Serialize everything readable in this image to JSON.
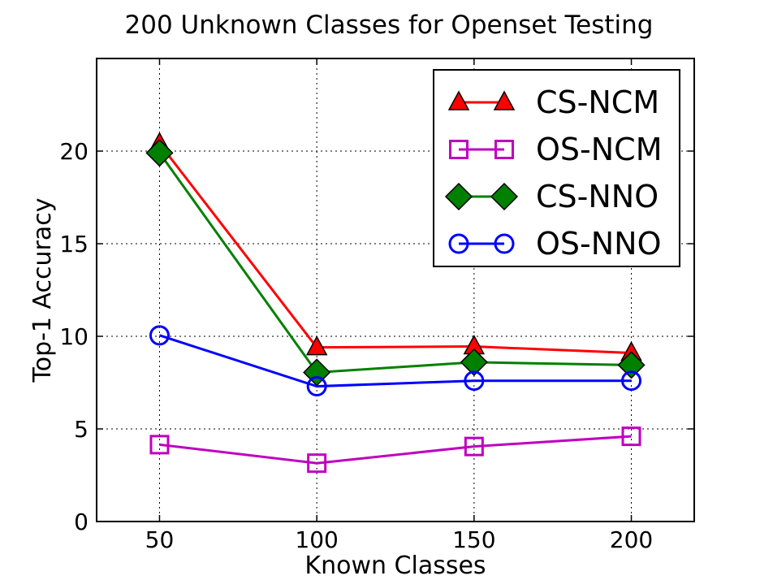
{
  "chart_data": {
    "type": "line",
    "title": "200 Unknown Classes for Openset Testing",
    "xlabel": "Known Classes",
    "ylabel": "Top-1 Accuracy",
    "x": [
      50,
      100,
      150,
      200
    ],
    "xlim": [
      30,
      220
    ],
    "ylim": [
      0,
      25
    ],
    "xticks": [
      50,
      100,
      150,
      200
    ],
    "yticks": [
      0,
      5,
      10,
      15,
      20
    ],
    "grid": true,
    "legend_position": "top-right",
    "series": [
      {
        "name": "CS-NCM",
        "values": [
          20.4,
          9.4,
          9.45,
          9.1
        ],
        "color": "#ff0000",
        "marker": "triangle",
        "marker_fill": "#ff0000"
      },
      {
        "name": "OS-NCM",
        "values": [
          4.15,
          3.15,
          4.05,
          4.6
        ],
        "color": "#bf00bf",
        "marker": "square",
        "marker_fill": "none"
      },
      {
        "name": "CS-NNO",
        "values": [
          19.9,
          8.05,
          8.6,
          8.45
        ],
        "color": "#008000",
        "marker": "diamond",
        "marker_fill": "#008000"
      },
      {
        "name": "OS-NNO",
        "values": [
          10.05,
          7.3,
          7.6,
          7.6
        ],
        "color": "#0000ff",
        "marker": "circle",
        "marker_fill": "none"
      }
    ]
  }
}
